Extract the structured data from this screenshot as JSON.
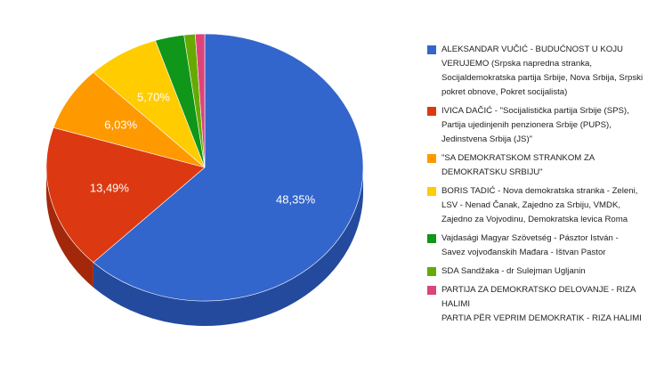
{
  "chart_data": {
    "type": "pie",
    "title": "",
    "three_d": true,
    "legend_position": "right",
    "slices": [
      {
        "label": "ALEKSANDAR VUČIĆ - BUDUĆNOST U KOJU VERUJEMO (Srpska napredna stranka, Socijaldemokratska partija Srbije, Nova Srbija, Srpski pokret obnove, Pokret socijalista)",
        "value": 48.35,
        "display": "48,35%",
        "color": "#3366cc",
        "dark_color": "#244a9e"
      },
      {
        "label": "IVICA DAČIĆ - \"Socijalistička partija Srbije (SPS), Partija ujedinjenih penzionera Srbije (PUPS), Jedinstvena Srbija (JS)\"",
        "value": 13.49,
        "display": "13,49%",
        "color": "#dc3912",
        "dark_color": "#a3280b"
      },
      {
        "label": "\"SA DEMOKRATSKOM STRANKOM ZA DEMOKRATSKU SRBIJU\"",
        "value": 6.03,
        "display": "6,03%",
        "color": "#ff9900",
        "dark_color": "#c27400"
      },
      {
        "label": "BORIS TADIĆ - Nova demokratska stranka - Zeleni, LSV - Nenad Čanak, Zajedno za Srbiju, VMDK, Zajedno za Vojvodinu, Demokratska levica Roma",
        "value": 5.7,
        "display": "5,70%",
        "color": "#ffcc00",
        "dark_color": "#c29b00"
      },
      {
        "label": "Vajdasági Magyar Szövetség - Pásztor István - Savez vojvođanskih Mađara - Ištvan Pastor",
        "value": 2.29,
        "display": "",
        "color": "#109618",
        "dark_color": "#0b6b11"
      },
      {
        "label": "SDA Sandžaka - dr Sulejman Ugljanin",
        "value": 0.88,
        "display": "",
        "color": "#66aa00",
        "dark_color": "#4a7b00"
      },
      {
        "label": "PARTIJA ZA DEMOKRATSKO DELOVANJE - RIZA HALIMI\nPARTIA PËR VEPRIM DEMOKRATIK - RIZA HALIMI",
        "value": 0.74,
        "display": "",
        "color": "#dd4477",
        "dark_color": "#a3304f"
      }
    ]
  }
}
